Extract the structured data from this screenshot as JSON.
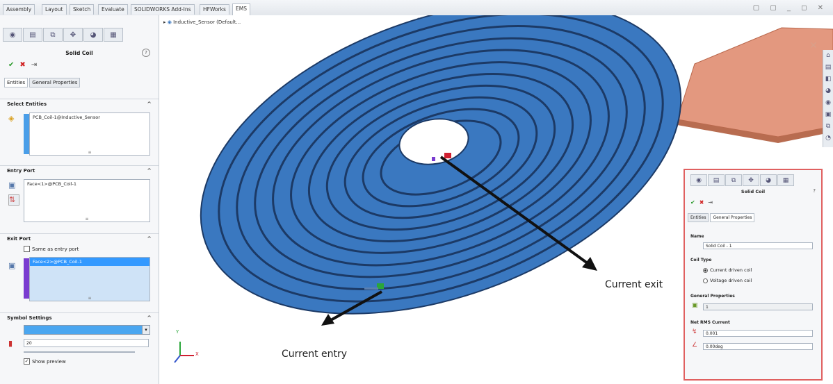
{
  "toolbar": {
    "tabs": [
      "Assembly",
      "Layout",
      "Sketch",
      "Evaluate",
      "SOLIDWORKS Add-Ins",
      "HFWorks",
      "EMS"
    ],
    "window_controls": "▢ ▢ _ ◻ ✕"
  },
  "panel": {
    "title": "Solid Coil",
    "help": "?",
    "ok": "✔",
    "cancel": "✖",
    "pin": "⇥",
    "subtabs": [
      "Entities",
      "General Properties"
    ],
    "select_entities": {
      "header": "Select Entities",
      "item": "PCB_Coil-1@Inductive_Sensor"
    },
    "entry_port": {
      "header": "Entry Port",
      "item": "Face<1>@PCB_Coil-1"
    },
    "exit_port": {
      "header": "Exit Port",
      "same_as_entry": "Same as entry port",
      "item": "Face<2>@PCB_Coil-1"
    },
    "symbol_settings": {
      "header": "Symbol Settings",
      "size": "20",
      "show_preview": "Show preview"
    }
  },
  "viewport": {
    "tree_item": "Inductive_Sensor (Default...",
    "label_exit": "Current exit",
    "label_entry": "Current entry",
    "triad": {
      "x": "X",
      "y": "Y"
    }
  },
  "inset_panel": {
    "title": "Solid Coil",
    "help": "?",
    "subtabs": [
      "Entities",
      "General Properties"
    ],
    "name_header": "Name",
    "name_value": "Solid Coil - 1",
    "coil_type_header": "Coil Type",
    "coil_current": "Current driven coil",
    "coil_voltage": "Voltage driven coil",
    "general_props_header": "General Properties",
    "general_props_value": "1",
    "net_rms_header": "Net RMS Current",
    "rms_value": "0.001",
    "phase_value": "0.00deg"
  },
  "colors": {
    "coil": "#3a78c0",
    "coil_gap": "#1c3a66",
    "plate": "#e0937a",
    "highlight_border": "#e06060"
  }
}
